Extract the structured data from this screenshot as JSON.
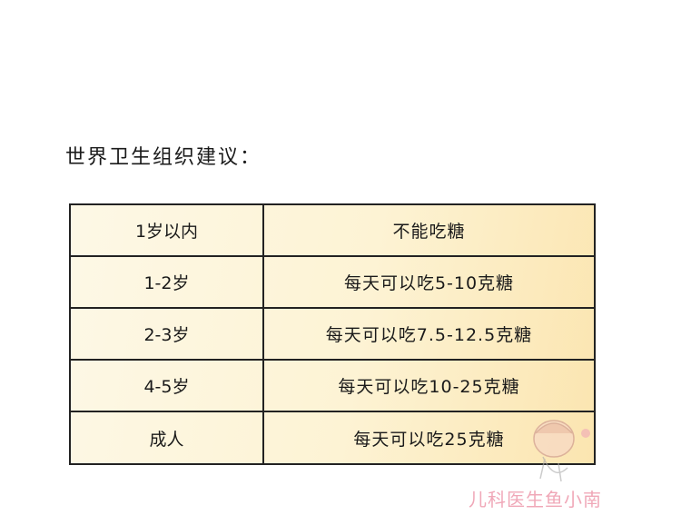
{
  "title": "世界卫生组织建议：",
  "table": {
    "rows": [
      {
        "age": "1岁以内",
        "advice": "不能吃糖"
      },
      {
        "age": "1-2岁",
        "advice": "每天可以吃5-10克糖"
      },
      {
        "age": "2-3岁",
        "advice": "每天可以吃7.5-12.5克糖"
      },
      {
        "age": "4-5岁",
        "advice": "每天可以吃10-25克糖"
      },
      {
        "age": "成人",
        "advice": "每天可以吃25克糖"
      }
    ]
  },
  "watermark": "儿科医生鱼小南",
  "colors": {
    "cell_fill": "#fdf3d4",
    "watermark": "#f0a8b8"
  }
}
